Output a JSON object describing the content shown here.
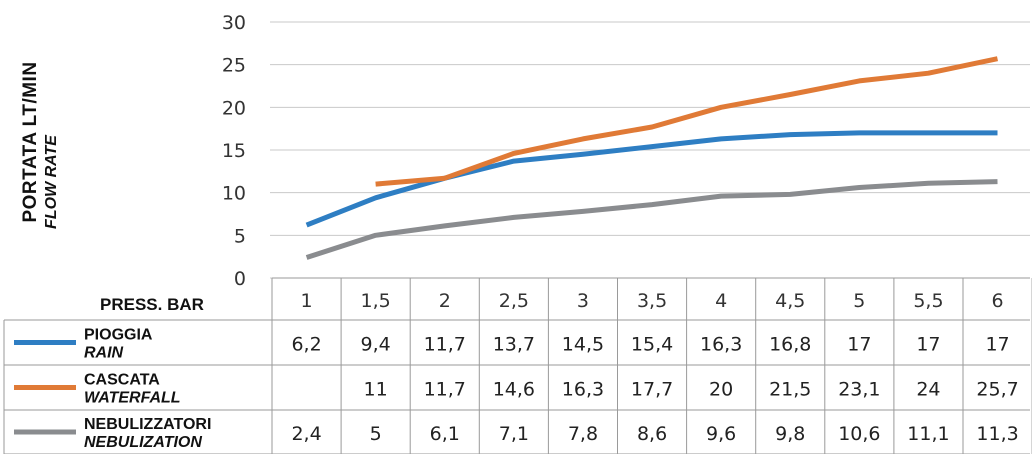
{
  "chart_data": {
    "type": "line",
    "ylabel": "PORTATA LT/MIN",
    "ylabel_en": "FLOW RATE",
    "ylim": [
      0,
      30
    ],
    "yticks": [
      "0",
      "5",
      "10",
      "15",
      "20",
      "25",
      "30"
    ],
    "grid": true,
    "table_header": "PRESS. BAR",
    "categories": [
      "1",
      "1,5",
      "2",
      "2,5",
      "3",
      "3,5",
      "4",
      "4,5",
      "5",
      "5,5",
      "6"
    ],
    "series": [
      {
        "name": "PIOGGIA",
        "name_en": "RAIN",
        "color": "#2e7ec3",
        "values": [
          6.2,
          9.4,
          11.7,
          13.7,
          14.5,
          15.4,
          16.3,
          16.8,
          17,
          17,
          17
        ],
        "labels": [
          "6,2",
          "9,4",
          "11,7",
          "13,7",
          "14,5",
          "15,4",
          "16,3",
          "16,8",
          "17",
          "17",
          "17"
        ]
      },
      {
        "name": "CASCATA",
        "name_en": "WATERFALL",
        "color": "#e07a36",
        "values": [
          null,
          11,
          11.7,
          14.6,
          16.3,
          17.7,
          20,
          21.5,
          23.1,
          24,
          25.7
        ],
        "labels": [
          "",
          "11",
          "11,7",
          "14,6",
          "16,3",
          "17,7",
          "20",
          "21,5",
          "23,1",
          "24",
          "25,7"
        ]
      },
      {
        "name": "NEBULIZZATORI",
        "name_en": "NEBULIZATION",
        "color": "#8a8c8f",
        "values": [
          2.4,
          5,
          6.1,
          7.1,
          7.8,
          8.6,
          9.6,
          9.8,
          10.6,
          11.1,
          11.3
        ],
        "labels": [
          "2,4",
          "5",
          "6,1",
          "7,1",
          "7,8",
          "8,6",
          "9,6",
          "9,8",
          "10,6",
          "11,1",
          "11,3"
        ]
      }
    ]
  }
}
